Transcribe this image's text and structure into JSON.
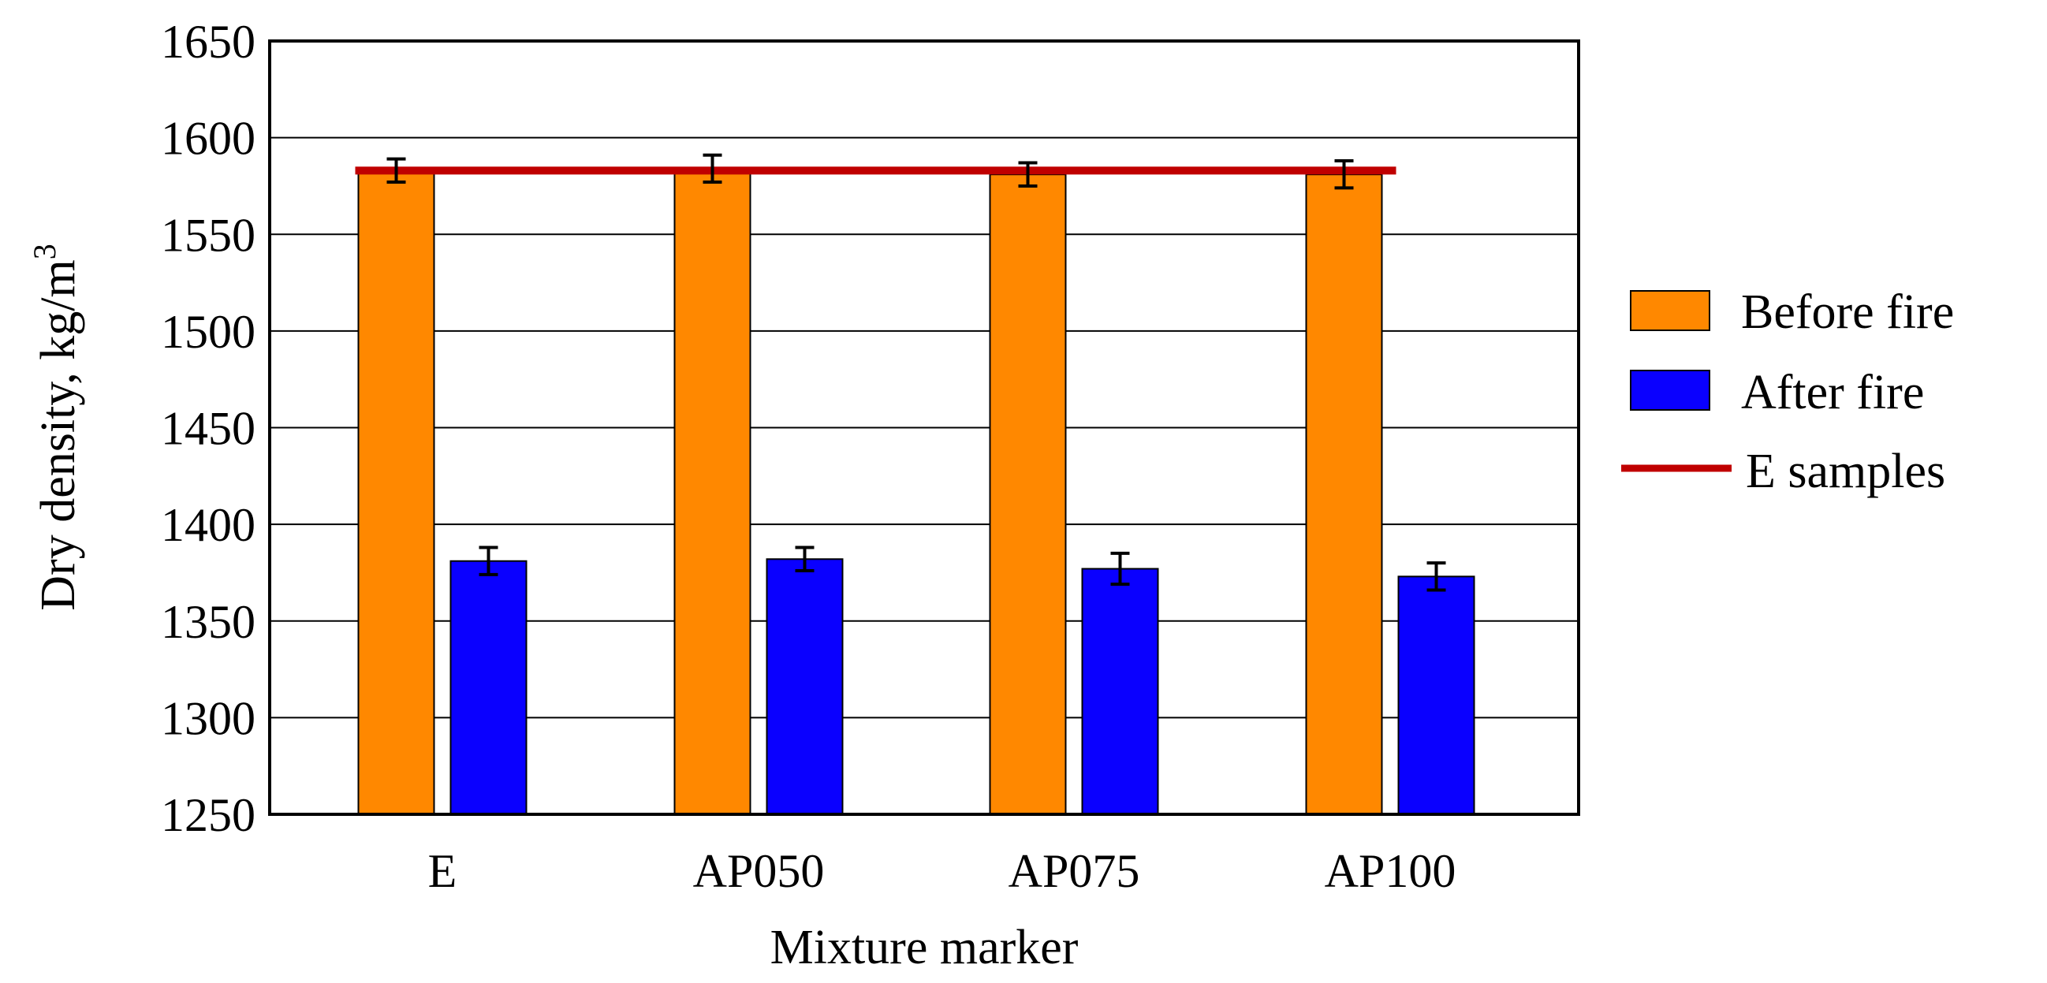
{
  "chart_data": {
    "type": "bar",
    "xlabel": "Mixture marker",
    "ylabel": "Dry density, kg/m",
    "ylabel_superscript": "3",
    "ylim": [
      1250,
      1650
    ],
    "yticks": [
      1250,
      1300,
      1350,
      1400,
      1450,
      1500,
      1550,
      1600,
      1650
    ],
    "grid": true,
    "legend_position": "right",
    "categories": [
      "E",
      "AP050",
      "AP075",
      "AP100"
    ],
    "series": [
      {
        "name": "Before fire",
        "color": "#ff8800",
        "values": [
          1583,
          1584,
          1581,
          1581
        ],
        "errors": [
          6,
          7,
          6,
          7
        ]
      },
      {
        "name": "After fire",
        "color": "#0a00ff",
        "values": [
          1381,
          1382,
          1377,
          1373
        ],
        "errors": [
          7,
          6,
          8,
          7
        ]
      }
    ],
    "reference_line": {
      "name": "E samples",
      "color": "#c00000",
      "value": 1583
    }
  }
}
